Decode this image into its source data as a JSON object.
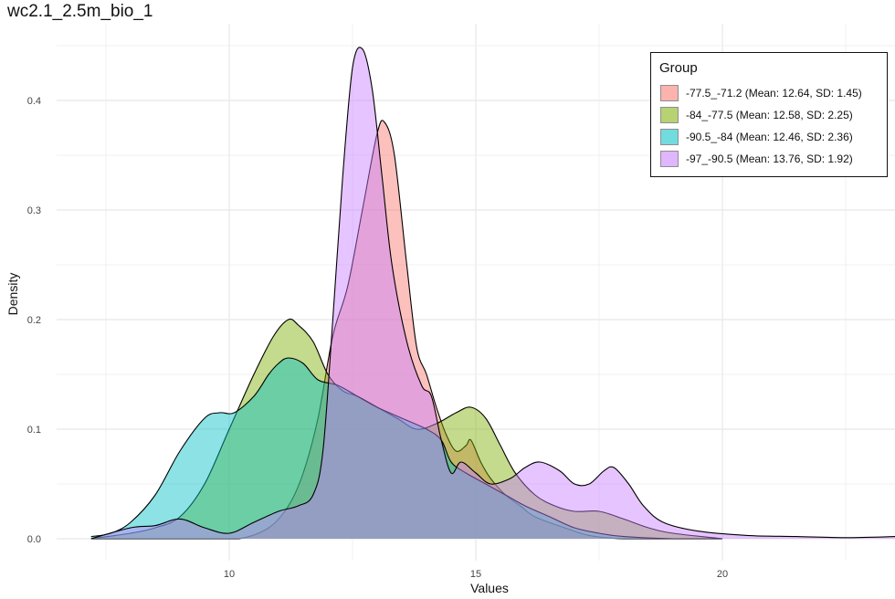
{
  "chart_data": {
    "type": "area",
    "title": "wc2.1_2.5m_bio_1",
    "xlabel": "Values",
    "ylabel": "Density",
    "xlim": [
      6.5,
      23.5
    ],
    "ylim": [
      -0.02,
      0.47
    ],
    "x_ticks": [
      10,
      15,
      20
    ],
    "y_ticks": [
      0.0,
      0.1,
      0.2,
      0.3,
      0.4
    ],
    "y_tick_labels": [
      "0.0",
      "0.1",
      "0.2",
      "0.3",
      "0.4"
    ],
    "grid": true,
    "legend_position": "top-right",
    "legend_title": "Group",
    "series": [
      {
        "name": "-77.5_-71.2 (Mean: 12.64, SD: 1.45)",
        "color": "#F8766D",
        "x": [
          7.2,
          8.5,
          9.5,
          10.2,
          10.8,
          11.2,
          11.5,
          11.8,
          12.1,
          12.4,
          12.7,
          13.0,
          13.15,
          13.35,
          13.6,
          13.8,
          14.0,
          14.2,
          14.4,
          14.6,
          14.8,
          14.9,
          15.1,
          15.3,
          15.6,
          15.9,
          16.2,
          16.8,
          17.3,
          18.0,
          19.0,
          20.0
        ],
        "y": [
          0.0,
          0.0,
          0.0,
          0.0,
          0.01,
          0.03,
          0.06,
          0.11,
          0.185,
          0.23,
          0.3,
          0.37,
          0.38,
          0.35,
          0.25,
          0.175,
          0.15,
          0.12,
          0.095,
          0.08,
          0.085,
          0.09,
          0.07,
          0.055,
          0.04,
          0.03,
          0.02,
          0.01,
          0.003,
          0.0,
          0.0,
          0.0
        ]
      },
      {
        "name": "-84_-77.5 (Mean: 12.58, SD: 2.25)",
        "color": "#7CAE00",
        "x": [
          7.2,
          8.0,
          8.5,
          9.0,
          9.5,
          10.0,
          10.5,
          10.9,
          11.2,
          11.4,
          11.7,
          12.0,
          12.3,
          12.6,
          13.0,
          13.4,
          13.8,
          14.2,
          14.6,
          14.9,
          15.2,
          15.5,
          15.8,
          16.2,
          16.6,
          17.0,
          17.5,
          18.0,
          18.5,
          19.0,
          20.0
        ],
        "y": [
          0.0,
          0.005,
          0.01,
          0.02,
          0.05,
          0.1,
          0.15,
          0.185,
          0.2,
          0.195,
          0.18,
          0.15,
          0.135,
          0.13,
          0.12,
          0.11,
          0.1,
          0.105,
          0.115,
          0.12,
          0.11,
          0.085,
          0.06,
          0.04,
          0.03,
          0.025,
          0.025,
          0.018,
          0.01,
          0.005,
          0.0
        ]
      },
      {
        "name": "-90.5_-84 (Mean: 12.46, SD: 2.36)",
        "color": "#00BFC4",
        "x": [
          7.2,
          7.6,
          8.0,
          8.5,
          9.0,
          9.5,
          9.8,
          10.1,
          10.5,
          10.8,
          11.0,
          11.2,
          11.5,
          11.8,
          12.2,
          12.6,
          13.0,
          13.5,
          14.0,
          14.3,
          14.5,
          14.8,
          15.2,
          15.6,
          16.0,
          16.5,
          17.0,
          17.5,
          18.0,
          19.0,
          20.0
        ],
        "y": [
          0.002,
          0.005,
          0.015,
          0.04,
          0.08,
          0.11,
          0.115,
          0.115,
          0.13,
          0.15,
          0.16,
          0.165,
          0.16,
          0.145,
          0.14,
          0.13,
          0.12,
          0.11,
          0.1,
          0.09,
          0.07,
          0.06,
          0.05,
          0.04,
          0.03,
          0.02,
          0.01,
          0.005,
          0.002,
          0.0,
          0.0
        ]
      },
      {
        "name": "-97_-90.5 (Mean: 13.76, SD: 1.92)",
        "color": "#C77CFF",
        "x": [
          7.2,
          8.0,
          8.5,
          9.0,
          9.5,
          10.0,
          10.5,
          11.0,
          11.4,
          11.7,
          11.9,
          12.1,
          12.3,
          12.5,
          12.7,
          12.9,
          13.1,
          13.3,
          13.6,
          13.9,
          14.1,
          14.3,
          14.5,
          14.7,
          15.0,
          15.3,
          15.7,
          16.0,
          16.3,
          16.7,
          17.0,
          17.3,
          17.6,
          17.8,
          18.1,
          18.4,
          18.8,
          19.5,
          20.5,
          21.5,
          22.5,
          23.5
        ],
        "y": [
          0.0,
          0.01,
          0.012,
          0.018,
          0.01,
          0.005,
          0.015,
          0.025,
          0.03,
          0.04,
          0.08,
          0.2,
          0.33,
          0.43,
          0.447,
          0.41,
          0.33,
          0.25,
          0.18,
          0.14,
          0.13,
          0.09,
          0.06,
          0.07,
          0.06,
          0.05,
          0.055,
          0.065,
          0.07,
          0.062,
          0.05,
          0.05,
          0.062,
          0.065,
          0.05,
          0.03,
          0.015,
          0.007,
          0.003,
          0.002,
          0.001,
          0.002
        ]
      }
    ]
  }
}
